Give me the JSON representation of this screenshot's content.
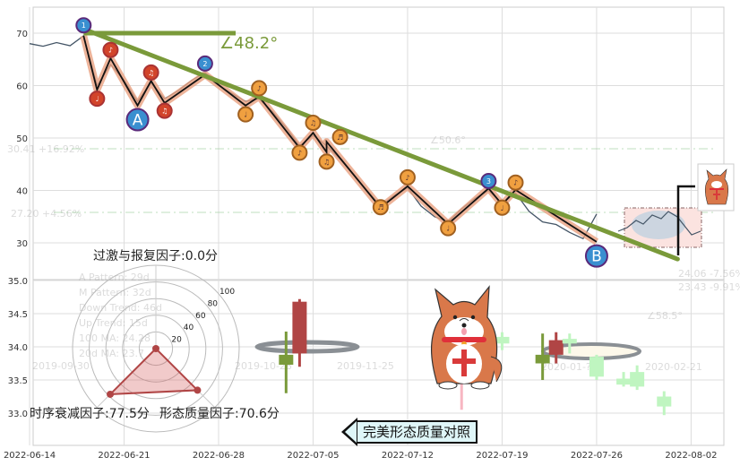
{
  "chart_data": {
    "type": "line",
    "x_ticks": [
      "2022-06-14",
      "2022-06-21",
      "2022-06-28",
      "2022-07-05",
      "2022-07-12",
      "2022-07-19",
      "2022-07-26",
      "2022-08-02"
    ],
    "y_ticks_main": [
      70,
      60,
      50,
      40,
      30
    ],
    "y_ticks_lower": [
      "35.0",
      "34.5",
      "34.0",
      "33.5",
      "33.0"
    ],
    "xlim": [
      "2022-06-14",
      "2022-08-05"
    ],
    "ylim_main": [
      24,
      75
    ],
    "ylim_lower": [
      32.6,
      35.0
    ],
    "grid": true,
    "price": [
      [
        "2022-06-14",
        68
      ],
      [
        "2022-06-15",
        67.5
      ],
      [
        "2022-06-16",
        68.2
      ],
      [
        "2022-06-17",
        67.6
      ],
      [
        "2022-06-18",
        69.5
      ],
      [
        "2022-06-19",
        60
      ],
      [
        "2022-06-20",
        64
      ],
      [
        "2022-06-21",
        61
      ],
      [
        "2022-06-22",
        57
      ],
      [
        "2022-06-23",
        60.5
      ],
      [
        "2022-06-24",
        57.5
      ],
      [
        "2022-06-25",
        59
      ],
      [
        "2022-06-26",
        61
      ],
      [
        "2022-06-27",
        62.5
      ],
      [
        "2022-06-28",
        60
      ],
      [
        "2022-06-29",
        58.5
      ],
      [
        "2022-06-30",
        57
      ],
      [
        "2022-07-01",
        57.5
      ],
      [
        "2022-07-02",
        55
      ],
      [
        "2022-07-03",
        52
      ],
      [
        "2022-07-04",
        48.5
      ],
      [
        "2022-07-05",
        50.5
      ],
      [
        "2022-07-06",
        48.5
      ],
      [
        "2022-07-07",
        46
      ],
      [
        "2022-07-08",
        43
      ],
      [
        "2022-07-09",
        40
      ],
      [
        "2022-07-10",
        37
      ],
      [
        "2022-07-11",
        39
      ],
      [
        "2022-07-12",
        40.5
      ],
      [
        "2022-07-13",
        37
      ],
      [
        "2022-07-14",
        35
      ],
      [
        "2022-07-15",
        34
      ],
      [
        "2022-07-16",
        36.5
      ],
      [
        "2022-07-17",
        38.5
      ],
      [
        "2022-07-18",
        40
      ],
      [
        "2022-07-19",
        37.5
      ],
      [
        "2022-07-20",
        39.5
      ],
      [
        "2022-07-21",
        36
      ],
      [
        "2022-07-22",
        34
      ],
      [
        "2022-07-23",
        33.5
      ],
      [
        "2022-07-24",
        32
      ],
      [
        "2022-07-25",
        30.8
      ],
      [
        "2022-07-26",
        35.5
      ]
    ],
    "zigzag": [
      [
        "2022-06-18",
        69.5
      ],
      [
        "2022-06-19",
        59.2
      ],
      [
        "2022-06-20",
        65.2
      ],
      [
        "2022-06-22",
        56.2
      ],
      [
        "2022-06-23",
        60.9
      ],
      [
        "2022-06-24",
        56.7
      ],
      [
        "2022-06-27",
        62.1
      ],
      [
        "2022-06-30",
        56.2
      ],
      [
        "2022-07-01",
        57.9
      ],
      [
        "2022-07-04",
        48.1
      ],
      [
        "2022-07-05",
        51
      ],
      [
        "2022-07-06",
        47.3
      ],
      [
        "2022-07-06",
        49.3
      ],
      [
        "2022-07-10",
        36.7
      ],
      [
        "2022-07-12",
        40.8
      ],
      [
        "2022-07-15",
        33.6
      ],
      [
        "2022-07-18",
        40.4
      ],
      [
        "2022-07-19",
        37.3
      ],
      [
        "2022-07-20",
        40.1
      ],
      [
        "2022-07-26",
        30.2
      ]
    ],
    "trendline": {
      "start": [
        "2022-06-18",
        70.8
      ],
      "end": [
        "2022-08-01",
        26.9
      ],
      "color": "#7a9a3a"
    },
    "horizontal_ref": {
      "start": [
        "2022-06-18",
        70
      ],
      "end": [
        "2022-06-29",
        70
      ]
    },
    "angle_label": "∠48.2°",
    "markers": [
      {
        "label": "1",
        "date": "2022-06-18",
        "value": 71.5,
        "kind": "blue-small"
      },
      {
        "label": "2",
        "date": "2022-06-27",
        "value": 64.2,
        "kind": "blue-small"
      },
      {
        "label": "3",
        "date": "2022-07-18",
        "value": 41.8,
        "kind": "blue-small"
      },
      {
        "label": "A",
        "date": "2022-06-22",
        "value": 53.5,
        "kind": "blue-large"
      },
      {
        "label": "B",
        "date": "2022-07-26",
        "value": 27.5,
        "kind": "blue-large"
      },
      {
        "label": "♩",
        "date": "2022-06-19",
        "value": 57.5,
        "kind": "red"
      },
      {
        "label": "♪",
        "date": "2022-06-20",
        "value": 66.8,
        "kind": "red"
      },
      {
        "label": "♫",
        "date": "2022-06-23",
        "value": 62.5,
        "kind": "red"
      },
      {
        "label": "♫",
        "date": "2022-06-24",
        "value": 55.2,
        "kind": "red"
      },
      {
        "label": "♩",
        "date": "2022-06-30",
        "value": 54.5,
        "kind": "orange"
      },
      {
        "label": "♪",
        "date": "2022-07-01",
        "value": 59.5,
        "kind": "orange"
      },
      {
        "label": "♪",
        "date": "2022-07-04",
        "value": 47.2,
        "kind": "orange"
      },
      {
        "label": "♫",
        "date": "2022-07-05",
        "value": 52.9,
        "kind": "orange"
      },
      {
        "label": "♫",
        "date": "2022-07-06",
        "value": 45.5,
        "kind": "orange"
      },
      {
        "label": "♬",
        "date": "2022-07-07",
        "value": 50.2,
        "kind": "orange"
      },
      {
        "label": "♬",
        "date": "2022-07-10",
        "value": 36.8,
        "kind": "orange"
      },
      {
        "label": "♪",
        "date": "2022-07-12",
        "value": 42.5,
        "kind": "orange"
      },
      {
        "label": "♩",
        "date": "2022-07-15",
        "value": 32.8,
        "kind": "orange"
      },
      {
        "label": "♩",
        "date": "2022-07-19",
        "value": 36.7,
        "kind": "orange"
      },
      {
        "label": "♪",
        "date": "2022-07-20",
        "value": 41.5,
        "kind": "orange"
      }
    ],
    "candles_lower": [
      {
        "date": "2022-07-03",
        "open": 33.88,
        "close": 33.73,
        "high": 34.23,
        "low": 33.3,
        "color": "#7a9a3a"
      },
      {
        "date": "2022-07-04",
        "open": 33.9,
        "close": 34.68,
        "high": 34.72,
        "low": 33.7,
        "color": "#b04545"
      },
      {
        "date": "2022-07-16",
        "open": 34.3,
        "close": 33.65,
        "high": 34.32,
        "low": 33.05,
        "color": "#f7b6c2"
      },
      {
        "date": "2022-07-17",
        "open": 34.0,
        "close": 34.05,
        "high": 34.2,
        "low": 33.85,
        "color": "#f7b6c2"
      },
      {
        "date": "2022-07-19",
        "open": 34.15,
        "close": 34.05,
        "high": 34.22,
        "low": 33.95,
        "color": "#bff5c0"
      },
      {
        "date": "2022-07-22",
        "open": 33.88,
        "close": 33.75,
        "high": 34.2,
        "low": 33.5,
        "color": "#7a9a3a"
      },
      {
        "date": "2022-07-23",
        "open": 34.1,
        "close": 33.88,
        "high": 34.22,
        "low": 33.75,
        "color": "#b04545"
      },
      {
        "date": "2022-07-24",
        "open": 34.12,
        "close": 34.05,
        "high": 34.2,
        "low": 33.9,
        "color": "#bff5c0"
      },
      {
        "date": "2022-07-26",
        "open": 33.85,
        "close": 33.55,
        "high": 33.88,
        "low": 33.5,
        "color": "#bff5c0"
      },
      {
        "date": "2022-07-28",
        "open": 33.52,
        "close": 33.43,
        "high": 33.62,
        "low": 33.4,
        "color": "#bff5c0"
      },
      {
        "date": "2022-07-29",
        "open": 33.62,
        "close": 33.4,
        "high": 33.72,
        "low": 33.35,
        "color": "#bff5c0"
      },
      {
        "date": "2022-07-31",
        "open": 33.25,
        "close": 33.1,
        "high": 33.33,
        "low": 32.97,
        "color": "#bff5c0"
      }
    ],
    "radar": {
      "rings": [
        "20",
        "40",
        "60",
        "80",
        "100"
      ],
      "axes": [
        {
          "label": "过激与报复因子:0.0分",
          "value": 0.0
        },
        {
          "label": "时序衰减因子:77.5分",
          "value": 77.5
        },
        {
          "label": "形态质量因子:70.6分",
          "value": 70.6
        }
      ],
      "color": "#b04545"
    }
  },
  "faint_text": {
    "legend": [
      "A Pattern: 29d",
      "M Pattern: 32d",
      "Down Trend: 46d",
      "Up Trend: 15d",
      "100 MA: 24.28",
      "20d MA: 23.7"
    ],
    "levels": [
      "30.41 +16.92%",
      "27.20 +4.56%",
      "24.06 -7.56%",
      "23.43 -9.91%"
    ],
    "angles": [
      "∠50.6°",
      "∠58.5°"
    ],
    "dates": [
      "2019-09-30",
      "2019-10-28",
      "2019-11-25",
      "2020-01-??",
      "2020-02-21"
    ]
  },
  "compare_button": "完美形态质量对照"
}
